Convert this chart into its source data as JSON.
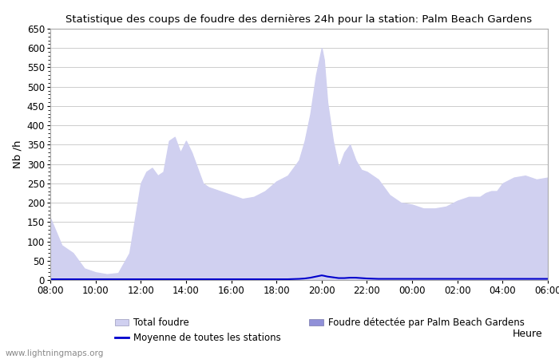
{
  "title": "Statistique des coups de foudre des dernières 24h pour la station: Palm Beach Gardens",
  "xlabel": "Heure",
  "ylabel": "Nb /h",
  "watermark": "www.lightningmaps.org",
  "legend_total": "Total foudre",
  "legend_detected": "Foudre détectée par Palm Beach Gardens",
  "legend_moyenne": "Moyenne de toutes les stations",
  "ylim": [
    0,
    650
  ],
  "yticks": [
    0,
    50,
    100,
    150,
    200,
    250,
    300,
    350,
    400,
    450,
    500,
    550,
    600,
    650
  ],
  "xtick_labels": [
    "08:00",
    "10:00",
    "12:00",
    "14:00",
    "16:00",
    "18:00",
    "20:00",
    "22:00",
    "00:00",
    "02:00",
    "04:00",
    "06:00"
  ],
  "bg_color": "#ffffff",
  "plot_bg_color": "#ffffff",
  "grid_color": "#cccccc",
  "fill_total_color": "#d0d0f0",
  "fill_detected_color": "#9090d8",
  "line_moyenne_color": "#0000cc",
  "x_hours": [
    8,
    8.5,
    9,
    9.5,
    10,
    10.5,
    11,
    11.5,
    12,
    12.25,
    12.5,
    12.75,
    13,
    13.25,
    13.5,
    13.75,
    14,
    14.25,
    14.5,
    14.75,
    15,
    15.5,
    16,
    16.5,
    17,
    17.5,
    18,
    18.5,
    19,
    19.25,
    19.5,
    19.75,
    20,
    20.1,
    20.25,
    20.5,
    20.75,
    21,
    21.25,
    21.5,
    21.75,
    22,
    22.5,
    23,
    23.5,
    24,
    24.5,
    25,
    25.5,
    26,
    26.5,
    27,
    27.25,
    27.5,
    27.75,
    28,
    28.5,
    29,
    29.5,
    30
  ],
  "total_foudre": [
    160,
    90,
    70,
    30,
    20,
    15,
    18,
    70,
    250,
    280,
    290,
    270,
    280,
    360,
    370,
    330,
    360,
    330,
    290,
    250,
    240,
    230,
    220,
    210,
    215,
    230,
    255,
    270,
    310,
    360,
    430,
    530,
    600,
    570,
    460,
    360,
    290,
    330,
    350,
    310,
    285,
    280,
    260,
    220,
    200,
    195,
    185,
    185,
    190,
    205,
    215,
    215,
    225,
    230,
    230,
    250,
    265,
    270,
    260,
    265
  ],
  "detected_foudre": [
    0,
    0,
    0,
    0,
    0,
    0,
    0,
    0,
    0,
    0,
    0,
    0,
    0,
    0,
    0,
    0,
    0,
    0,
    0,
    0,
    0,
    0,
    0,
    0,
    0,
    0,
    0,
    0,
    0,
    0,
    0,
    0,
    0,
    0,
    0,
    0,
    0,
    0,
    0,
    0,
    0,
    0,
    0,
    0,
    0,
    0,
    0,
    0,
    0,
    0,
    0,
    0,
    0,
    0,
    0,
    0,
    0,
    0,
    0,
    0
  ],
  "moyenne": [
    2,
    2,
    2,
    2,
    2,
    2,
    2,
    2,
    2,
    2,
    2,
    2,
    2,
    2,
    2,
    2,
    2,
    2,
    2,
    2,
    2,
    2,
    2,
    2,
    2,
    2,
    2,
    2,
    3,
    4,
    6,
    9,
    12,
    11,
    9,
    7,
    5,
    5,
    6,
    6,
    5,
    4,
    3,
    3,
    3,
    3,
    3,
    3,
    3,
    3,
    3,
    3,
    3,
    3,
    3,
    3,
    3,
    3,
    3,
    3
  ]
}
